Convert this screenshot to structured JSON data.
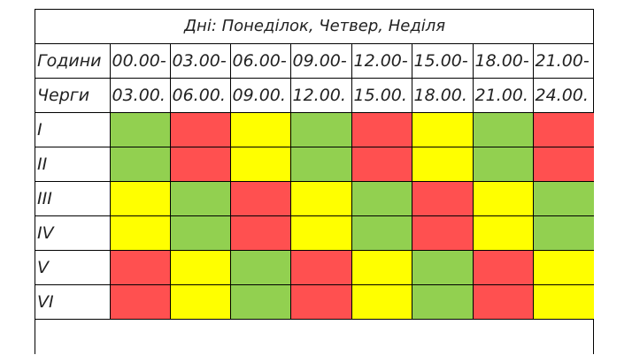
{
  "title": "Дні: Понеділок, Четвер, Неділя",
  "header": {
    "hours_label": "Години",
    "shifts_label": "Черги",
    "start_times": [
      "00.00-",
      "03.00-",
      "06.00-",
      "09.00-",
      "12.00-",
      "15.00-",
      "18.00-",
      "21.00-"
    ],
    "end_times": [
      "03.00.",
      "06.00.",
      "09.00.",
      "12.00.",
      "15.00.",
      "18.00.",
      "21.00.",
      "24.00."
    ]
  },
  "colors": {
    "green": "#92d050",
    "red": "#ff5050",
    "yellow": "#ffff00"
  },
  "shifts": [
    {
      "label": "I",
      "cells": [
        "green",
        "red",
        "yellow",
        "green",
        "red",
        "yellow",
        "green",
        "red"
      ]
    },
    {
      "label": "II",
      "cells": [
        "green",
        "red",
        "yellow",
        "green",
        "red",
        "yellow",
        "green",
        "red"
      ]
    },
    {
      "label": "III",
      "cells": [
        "yellow",
        "green",
        "red",
        "yellow",
        "green",
        "red",
        "yellow",
        "green"
      ]
    },
    {
      "label": "IV",
      "cells": [
        "yellow",
        "green",
        "red",
        "yellow",
        "green",
        "red",
        "yellow",
        "green"
      ]
    },
    {
      "label": "V",
      "cells": [
        "red",
        "yellow",
        "green",
        "red",
        "yellow",
        "green",
        "red",
        "yellow"
      ]
    },
    {
      "label": "VI",
      "cells": [
        "red",
        "yellow",
        "green",
        "red",
        "yellow",
        "green",
        "red",
        "yellow"
      ]
    }
  ]
}
